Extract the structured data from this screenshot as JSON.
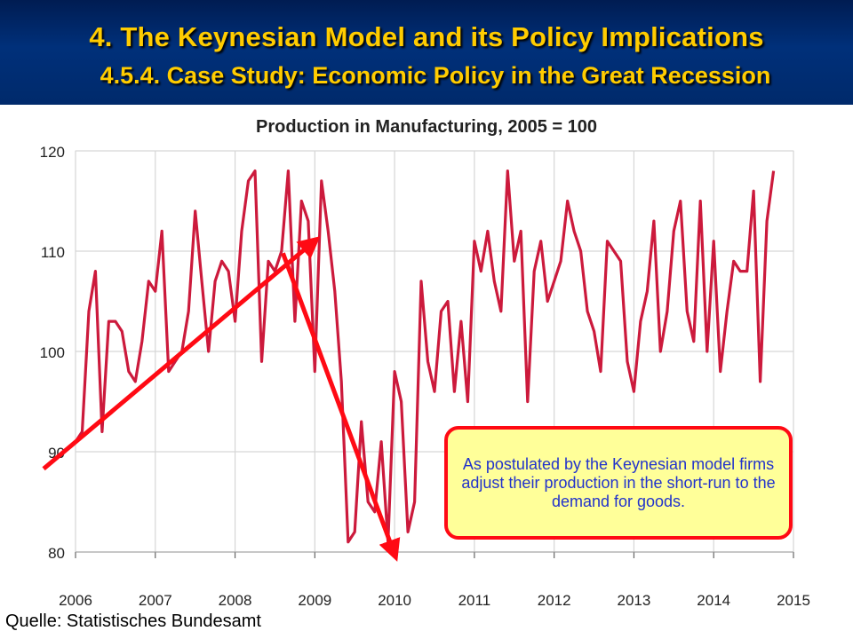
{
  "slide": {
    "title": "4. The Keynesian Model and its Policy Implications",
    "subtitle": "4.5.4. Case Study: Economic Policy in the Great Recession",
    "source": "Quelle: Statistisches Bundesamt",
    "annotation": "As postulated by the Keynesian model firms adjust their production in the short-run to the demand for goods."
  },
  "colors": {
    "header_background": "#00307a",
    "title_text": "#ffcc00",
    "series_line": "#cc1a3c",
    "arrows": "#ff0a14",
    "annotation_fill": "#ffff99",
    "annotation_border": "#ff0a14",
    "annotation_text": "#2233cc"
  },
  "chart_data": {
    "type": "line",
    "title": "Production in Manufacturing, 2005 = 100",
    "xlabel": "",
    "ylabel": "",
    "xlim": [
      2006,
      2015
    ],
    "ylim": [
      80,
      120
    ],
    "xticks": [
      2006,
      2007,
      2008,
      2009,
      2010,
      2011,
      2012,
      2013,
      2014,
      2015
    ],
    "yticks": [
      80,
      90,
      100,
      110,
      120
    ],
    "grid": true,
    "series": [
      {
        "frequency": "monthly",
        "x": [
          2006.0,
          2006.083,
          2006.167,
          2006.25,
          2006.333,
          2006.417,
          2006.5,
          2006.583,
          2006.667,
          2006.75,
          2006.833,
          2006.917,
          2007.0,
          2007.083,
          2007.167,
          2007.25,
          2007.333,
          2007.417,
          2007.5,
          2007.583,
          2007.667,
          2007.75,
          2007.833,
          2007.917,
          2008.0,
          2008.083,
          2008.167,
          2008.25,
          2008.333,
          2008.417,
          2008.5,
          2008.583,
          2008.667,
          2008.75,
          2008.833,
          2008.917,
          2009.0,
          2009.083,
          2009.167,
          2009.25,
          2009.333,
          2009.417,
          2009.5,
          2009.583,
          2009.667,
          2009.75,
          2009.833,
          2009.917,
          2010.0,
          2010.083,
          2010.167,
          2010.25,
          2010.333,
          2010.417,
          2010.5,
          2010.583,
          2010.667,
          2010.75,
          2010.833,
          2010.917,
          2011.0,
          2011.083,
          2011.167,
          2011.25,
          2011.333,
          2011.417,
          2011.5,
          2011.583,
          2011.667,
          2011.75,
          2011.833,
          2011.917,
          2012.0,
          2012.083,
          2012.167,
          2012.25,
          2012.333,
          2012.417,
          2012.5,
          2012.583,
          2012.667,
          2012.75,
          2012.833,
          2012.917,
          2013.0,
          2013.083,
          2013.167,
          2013.25,
          2013.333,
          2013.417,
          2013.5,
          2013.583,
          2013.667,
          2013.75,
          2013.833,
          2013.917,
          2014.0,
          2014.083,
          2014.167,
          2014.25,
          2014.333,
          2014.417,
          2014.5,
          2014.583,
          2014.667,
          2014.75
        ],
        "values": [
          91,
          92,
          104,
          108,
          92,
          103,
          103,
          102,
          98,
          97,
          101,
          107,
          106,
          112,
          98,
          99,
          100,
          104,
          114,
          107,
          100,
          107,
          109,
          108,
          103,
          112,
          117,
          118,
          99,
          109,
          108,
          110,
          118,
          103,
          115,
          113,
          98,
          117,
          112,
          106,
          97,
          81,
          82,
          93,
          85,
          84,
          91,
          81,
          98,
          95,
          82,
          85,
          107,
          99,
          96,
          104,
          105,
          96,
          103,
          95,
          111,
          108,
          112,
          107,
          104,
          118,
          109,
          112,
          95,
          108,
          111,
          105,
          107,
          109,
          115,
          112,
          110,
          104,
          102,
          98,
          111,
          110,
          109,
          99,
          96,
          103,
          106,
          113,
          100,
          104,
          112,
          115,
          104,
          101,
          115,
          100,
          111,
          98,
          104,
          109,
          108,
          108,
          116,
          97,
          113,
          118
        ]
      }
    ]
  }
}
